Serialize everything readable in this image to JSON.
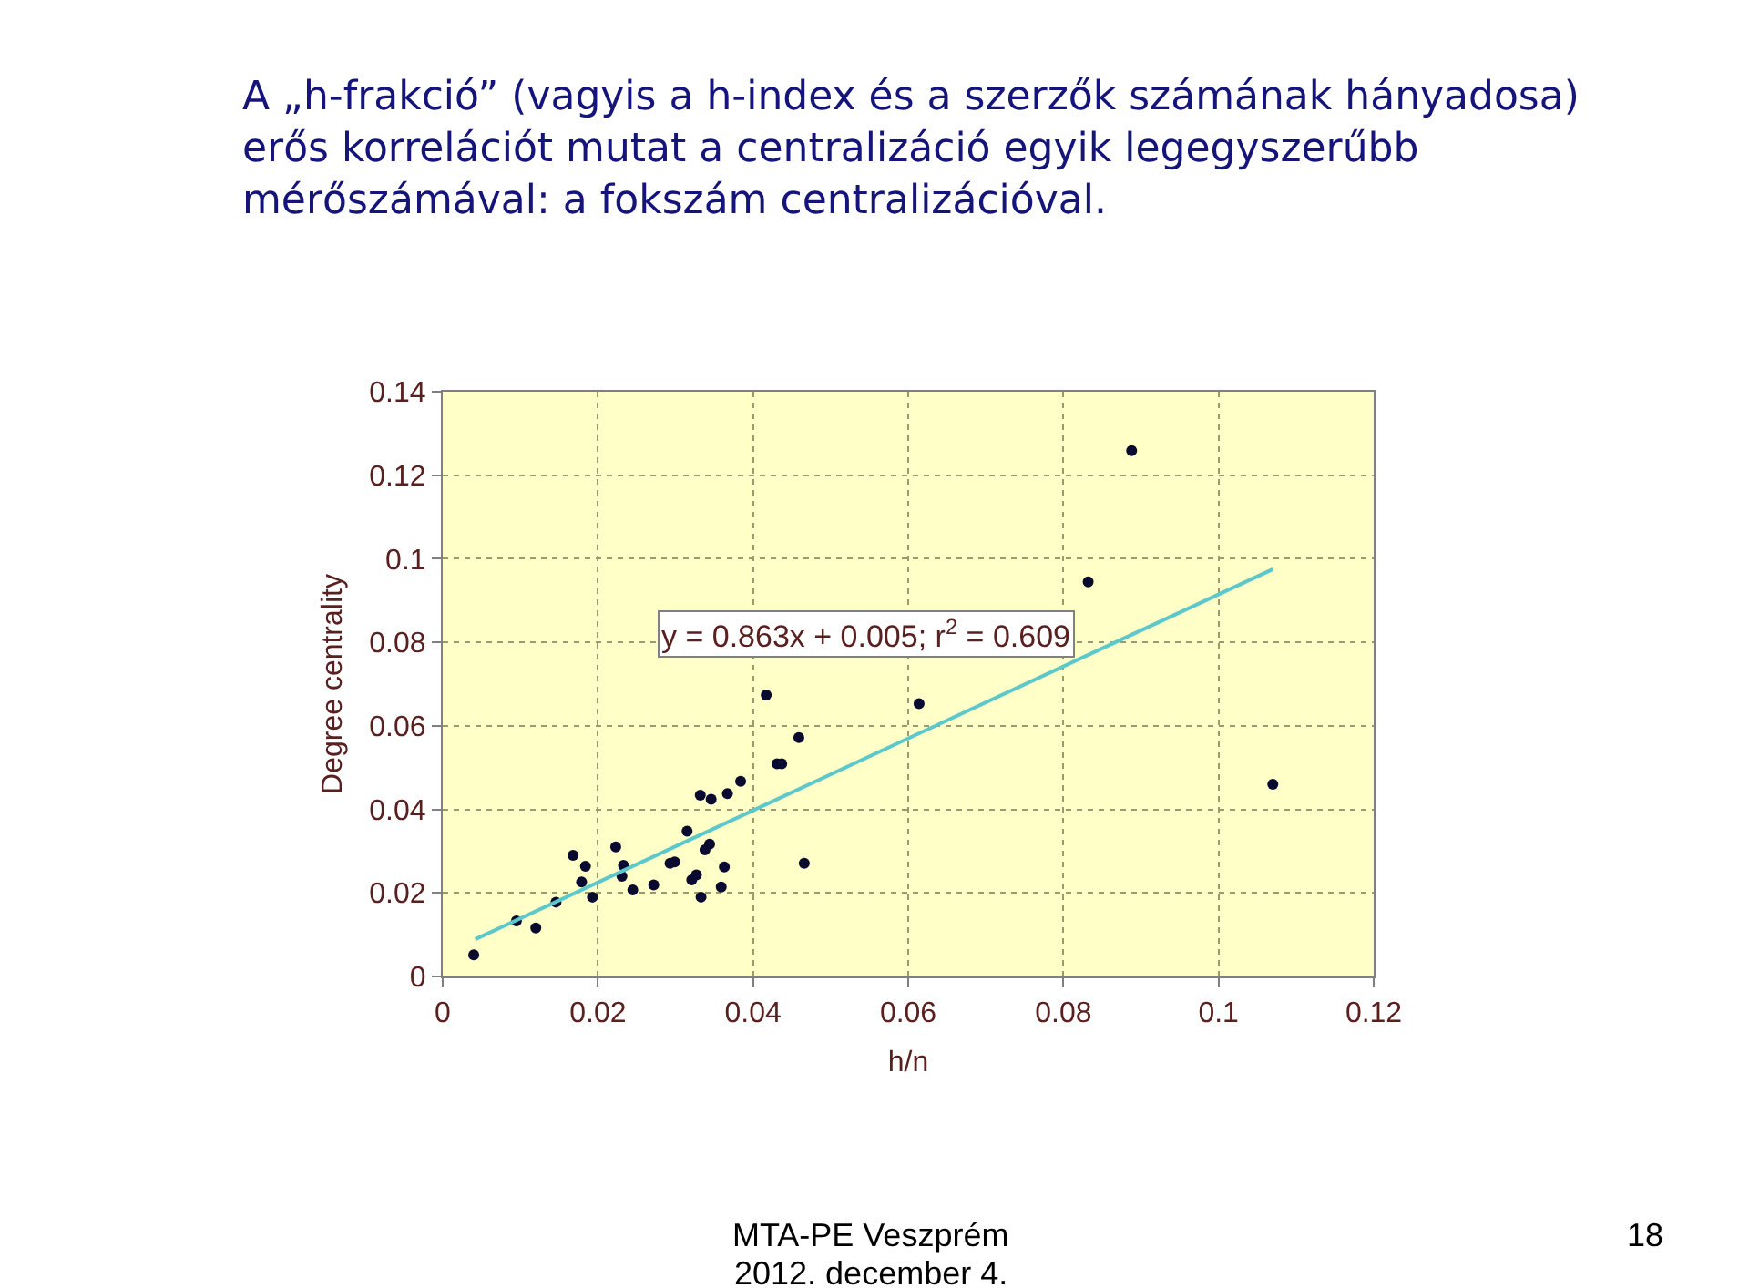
{
  "chart_data": {
    "type": "scatter",
    "title": "A „h-frakció” (vagyis a h-index és a szerzők számának hányadosa)\nerős korrelációt mutat a centralizáció egyik legegyszerűbb\nmérőszámával: a fokszám centralizációval.",
    "xlabel": "h/n",
    "ylabel": "Degree centrality",
    "series": [
      {
        "color": "#0a0a30",
        "marker": "circle",
        "x": [
          0.004,
          0.0095,
          0.012,
          0.0146,
          0.0168,
          0.0184,
          0.0179,
          0.0193,
          0.0223,
          0.0233,
          0.0231,
          0.0245,
          0.0272,
          0.0293,
          0.0299,
          0.0315,
          0.0321,
          0.0327,
          0.0332,
          0.0333,
          0.0338,
          0.0344,
          0.0346,
          0.0359,
          0.0363,
          0.0367,
          0.0384,
          0.0417,
          0.0431,
          0.0437,
          0.0459,
          0.0466,
          0.0614,
          0.0832,
          0.0888,
          0.107
        ],
        "values": [
          0.0052,
          0.0133,
          0.0116,
          0.0178,
          0.029,
          0.0264,
          0.0226,
          0.019,
          0.031,
          0.0266,
          0.024,
          0.0207,
          0.0219,
          0.0271,
          0.0274,
          0.0348,
          0.0231,
          0.0243,
          0.0434,
          0.019,
          0.0303,
          0.0317,
          0.0424,
          0.0214,
          0.0262,
          0.0438,
          0.0467,
          0.0674,
          0.0509,
          0.0509,
          0.0572,
          0.0271,
          0.0653,
          0.0945,
          0.1259,
          0.046
        ]
      },
      {
        "type": "line",
        "color": "#5cc8cc",
        "marker": "none",
        "line_style": "solid",
        "x": [
          0.0042,
          0.107
        ],
        "values": [
          0.0089,
          0.0975
        ]
      }
    ],
    "xlim": [
      0,
      0.12
    ],
    "xticks": [
      0,
      0.02,
      0.04,
      0.06,
      0.08,
      0.1,
      0.12
    ],
    "ylim": [
      0,
      0.14
    ],
    "yticks": [
      0,
      0.02,
      0.04,
      0.06,
      0.08,
      0.1,
      0.12,
      0.14
    ],
    "grid": true,
    "annotations": [
      "y = 0.863x + 0.005; r$^{2}$ = 0.609",
      "MTA-PE Veszprém",
      "2012. december 4.",
      "18"
    ]
  }
}
